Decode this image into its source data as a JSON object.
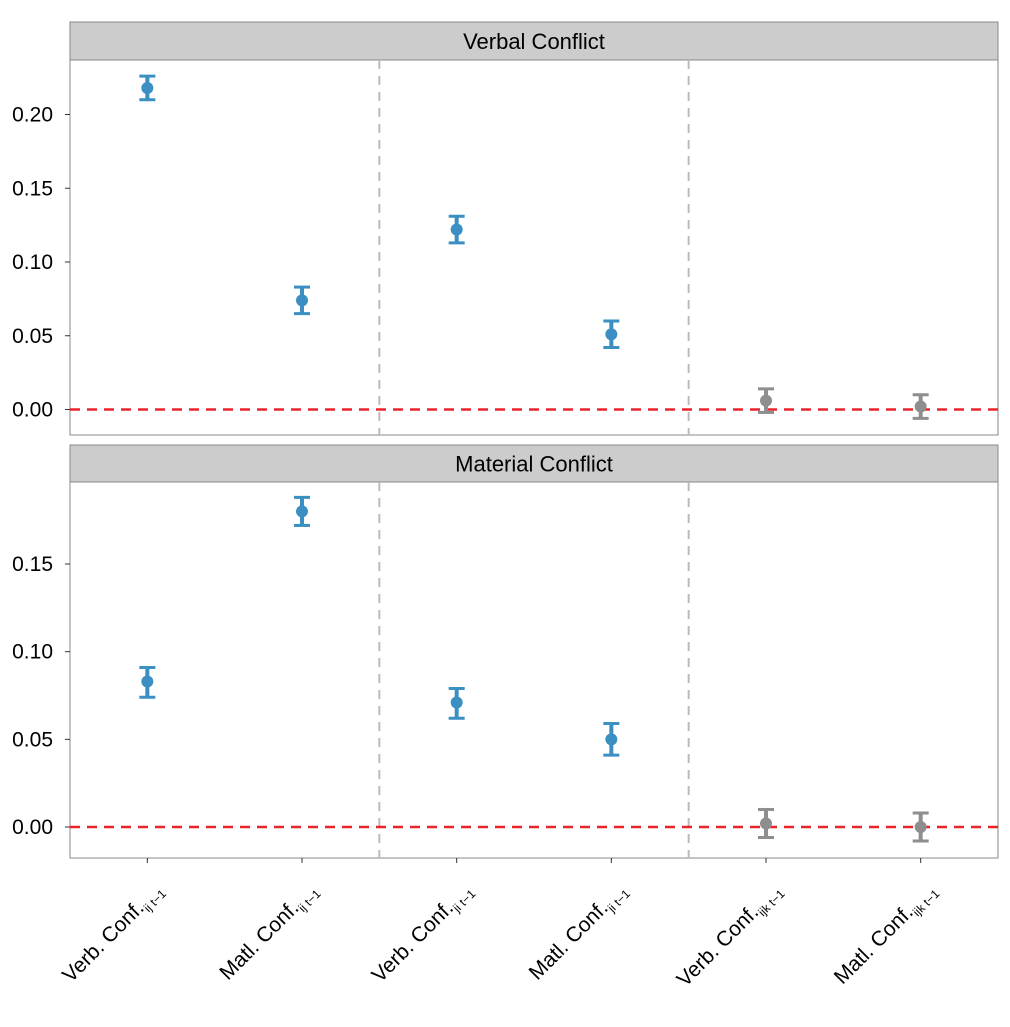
{
  "chart_data": {
    "type": "scatter",
    "subtype": "point-range (estimate with error bars), faceted",
    "categories": [
      {
        "main": "Verb. Conf.",
        "sub": "ij t−1"
      },
      {
        "main": "Matl. Conf.",
        "sub": "ij t−1"
      },
      {
        "main": "Verb. Conf.",
        "sub": "ji t−1"
      },
      {
        "main": "Matl. Conf.",
        "sub": "ji t−1"
      },
      {
        "main": "Verb. Conf.",
        "sub": "ijk t−1"
      },
      {
        "main": "Matl. Conf.",
        "sub": "ijk t−1"
      }
    ],
    "group_separators_after_category_index": [
      1,
      3
    ],
    "reference_line": {
      "y": 0.0,
      "color": "#e8232a",
      "style": "dashed"
    },
    "colors": {
      "significant": "#3b8fc2",
      "not_significant": "#8e8e8e",
      "strip_background": "#cccccc",
      "separator": "#bbbbbb",
      "panel_border": "#888888"
    },
    "grid": false,
    "panels": [
      {
        "title": "Verbal Conflict",
        "ylim": [
          -0.018,
          0.232
        ],
        "yticks": [
          {
            "value": 0.0,
            "label": "0.00"
          },
          {
            "value": 0.05,
            "label": "0.05"
          },
          {
            "value": 0.1,
            "label": "0.10"
          },
          {
            "value": 0.15,
            "label": "0.15"
          },
          {
            "value": 0.2,
            "label": "0.20"
          }
        ],
        "points": [
          {
            "estimate": 0.218,
            "lower": 0.21,
            "upper": 0.226,
            "significant": true
          },
          {
            "estimate": 0.074,
            "lower": 0.065,
            "upper": 0.083,
            "significant": true
          },
          {
            "estimate": 0.122,
            "lower": 0.113,
            "upper": 0.131,
            "significant": true
          },
          {
            "estimate": 0.051,
            "lower": 0.042,
            "upper": 0.06,
            "significant": true
          },
          {
            "estimate": 0.006,
            "lower": -0.002,
            "upper": 0.014,
            "significant": false
          },
          {
            "estimate": 0.002,
            "lower": -0.006,
            "upper": 0.01,
            "significant": false
          }
        ]
      },
      {
        "title": "Material Conflict",
        "ylim": [
          -0.018,
          0.195
        ],
        "yticks": [
          {
            "value": 0.0,
            "label": "0.00"
          },
          {
            "value": 0.05,
            "label": "0.05"
          },
          {
            "value": 0.1,
            "label": "0.10"
          },
          {
            "value": 0.15,
            "label": "0.15"
          }
        ],
        "points": [
          {
            "estimate": 0.083,
            "lower": 0.074,
            "upper": 0.091,
            "significant": true
          },
          {
            "estimate": 0.18,
            "lower": 0.172,
            "upper": 0.188,
            "significant": true
          },
          {
            "estimate": 0.071,
            "lower": 0.062,
            "upper": 0.079,
            "significant": true
          },
          {
            "estimate": 0.05,
            "lower": 0.041,
            "upper": 0.059,
            "significant": true
          },
          {
            "estimate": 0.002,
            "lower": -0.006,
            "upper": 0.01,
            "significant": false
          },
          {
            "estimate": 0.0,
            "lower": -0.008,
            "upper": 0.008,
            "significant": false
          }
        ]
      }
    ]
  }
}
